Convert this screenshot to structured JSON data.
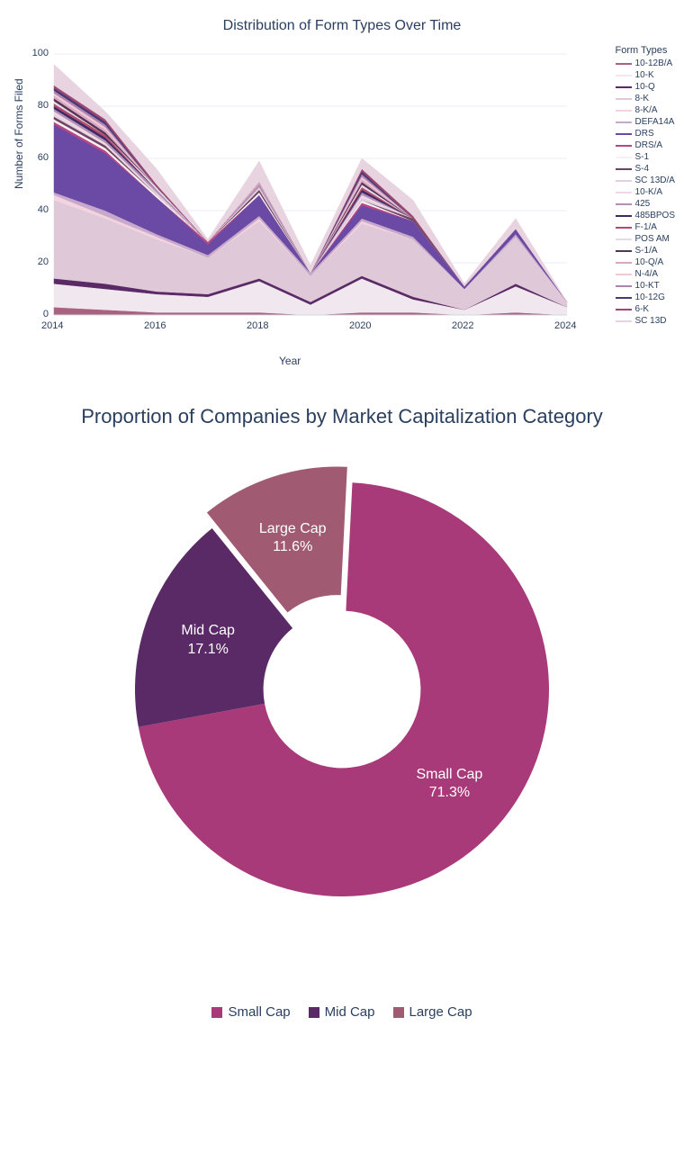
{
  "area_chart": {
    "type": "stacked-area",
    "title": "Distribution of Form Types Over Time",
    "xlabel": "Year",
    "ylabel": "Number of Forms Filed",
    "xlim": [
      2014,
      2024
    ],
    "ylim": [
      0,
      100
    ],
    "xticks": [
      2014,
      2016,
      2018,
      2020,
      2022,
      2024
    ],
    "yticks": [
      0,
      20,
      40,
      60,
      80,
      100
    ],
    "background_color": "#ffffff",
    "grid_color": "#eaeef4",
    "axis_color": "#2a3f5f",
    "title_color": "#2a3f5f",
    "title_fontsize": 16,
    "label_fontsize": 12,
    "tick_fontsize": 11,
    "legend_title": "Form Types",
    "legend_fontsize": 10,
    "x_values": [
      2014,
      2015,
      2016,
      2017,
      2018,
      2019,
      2020,
      2021,
      2022,
      2023,
      2024
    ],
    "series": [
      {
        "name": "10-12B/A",
        "color": "#a9627f",
        "values": [
          3,
          2,
          1,
          1,
          1,
          0,
          1,
          1,
          0,
          1,
          0
        ]
      },
      {
        "name": "10-K",
        "color": "#f0e8ee",
        "values": [
          9,
          8,
          7,
          6,
          12,
          4,
          13,
          5,
          2,
          10,
          3
        ]
      },
      {
        "name": "10-Q",
        "color": "#5a2a66",
        "values": [
          2,
          2,
          1,
          1,
          1,
          1,
          1,
          1,
          0,
          1,
          0
        ]
      },
      {
        "name": "8-K",
        "color": "#dfc8d8",
        "values": [
          30,
          25,
          20,
          14,
          22,
          10,
          20,
          22,
          8,
          18,
          2
        ]
      },
      {
        "name": "8-K/A",
        "color": "#f3d3e0",
        "values": [
          2,
          1,
          1,
          0,
          1,
          0,
          1,
          0,
          0,
          0,
          0
        ]
      },
      {
        "name": "DEFA14A",
        "color": "#c7a9cc",
        "values": [
          1,
          2,
          1,
          1,
          1,
          1,
          1,
          1,
          0,
          1,
          0
        ]
      },
      {
        "name": "DRS",
        "color": "#6a4aa4",
        "values": [
          26,
          22,
          14,
          4,
          8,
          0,
          5,
          6,
          1,
          2,
          0
        ]
      },
      {
        "name": "DRS/A",
        "color": "#b54784",
        "values": [
          1,
          1,
          0,
          1,
          0,
          0,
          1,
          0,
          0,
          0,
          0
        ]
      },
      {
        "name": "S-1",
        "color": "#f7eff4",
        "values": [
          1,
          1,
          1,
          0,
          1,
          0,
          1,
          0,
          0,
          0,
          0
        ]
      },
      {
        "name": "S-4",
        "color": "#6d4562",
        "values": [
          1,
          1,
          0,
          0,
          1,
          0,
          0,
          1,
          0,
          0,
          0
        ]
      },
      {
        "name": "SC 13D/A",
        "color": "#e2d0e1",
        "values": [
          1,
          0,
          1,
          0,
          1,
          0,
          1,
          0,
          0,
          0,
          0
        ]
      },
      {
        "name": "10-K/A",
        "color": "#f0d8e4",
        "values": [
          1,
          1,
          0,
          0,
          0,
          0,
          1,
          0,
          0,
          0,
          0
        ]
      },
      {
        "name": "425",
        "color": "#b092b7",
        "values": [
          1,
          1,
          1,
          0,
          1,
          0,
          1,
          0,
          0,
          0,
          0
        ]
      },
      {
        "name": "485BPOS",
        "color": "#3c2a66",
        "values": [
          1,
          1,
          0,
          0,
          0,
          0,
          1,
          0,
          0,
          0,
          0
        ]
      },
      {
        "name": "F-1/A",
        "color": "#b24a6f",
        "values": [
          1,
          1,
          0,
          0,
          0,
          0,
          1,
          0,
          0,
          0,
          0
        ]
      },
      {
        "name": "POS AM",
        "color": "#e6dbe3",
        "values": [
          1,
          0,
          1,
          0,
          0,
          0,
          1,
          0,
          0,
          0,
          0
        ]
      },
      {
        "name": "S-1/A",
        "color": "#543557",
        "values": [
          1,
          1,
          0,
          0,
          0,
          0,
          1,
          0,
          0,
          0,
          0
        ]
      },
      {
        "name": "10-Q/A",
        "color": "#d8a8c1",
        "values": [
          1,
          1,
          0,
          0,
          1,
          0,
          1,
          0,
          0,
          0,
          0
        ]
      },
      {
        "name": "N-4/A",
        "color": "#f2c8d9",
        "values": [
          1,
          1,
          0,
          0,
          0,
          0,
          1,
          0,
          0,
          0,
          0
        ]
      },
      {
        "name": "10-KT",
        "color": "#ad86b0",
        "values": [
          1,
          1,
          0,
          0,
          0,
          0,
          1,
          0,
          0,
          0,
          0
        ]
      },
      {
        "name": "10-12G",
        "color": "#4a3878",
        "values": [
          1,
          1,
          0,
          0,
          0,
          0,
          1,
          0,
          0,
          0,
          0
        ]
      },
      {
        "name": "6-K",
        "color": "#9c4871",
        "values": [
          1,
          1,
          1,
          0,
          0,
          0,
          1,
          1,
          0,
          0,
          0
        ]
      },
      {
        "name": "SC 13D",
        "color": "#e8d4e0",
        "values": [
          8,
          3,
          6,
          1,
          8,
          3,
          4,
          6,
          1,
          4,
          0
        ]
      }
    ]
  },
  "pie_chart": {
    "type": "donut",
    "title": "Proportion of Companies by Market Capitalization Category",
    "title_color": "#2a3f5f",
    "title_fontsize": 22,
    "hole_ratio": 0.38,
    "pull_large_cap": 0.08,
    "label_color": "#ffffff",
    "label_fontsize": 16,
    "legend_fontsize": 15,
    "slices": [
      {
        "label": "Small Cap",
        "pct": 71.3,
        "color": "#a83a79",
        "pulled": false
      },
      {
        "label": "Mid Cap",
        "pct": 17.1,
        "color": "#5a2a66",
        "pulled": false
      },
      {
        "label": "Large Cap",
        "pct": 11.6,
        "color": "#a05a72",
        "pulled": true
      }
    ]
  }
}
